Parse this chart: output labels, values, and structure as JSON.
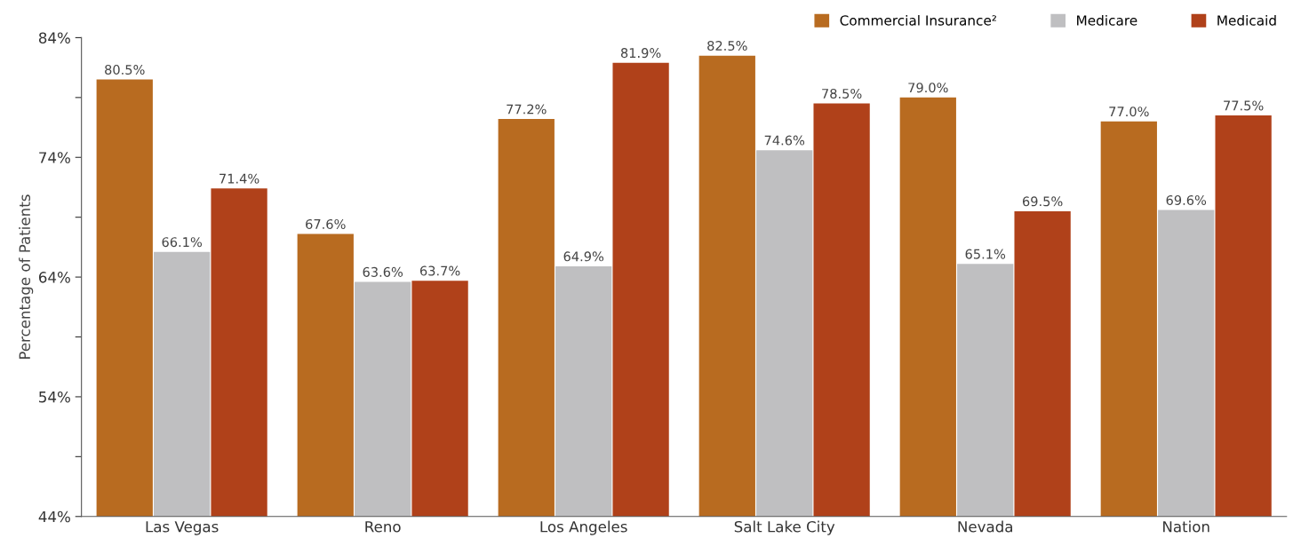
{
  "chart_data": {
    "type": "bar",
    "ylabel": "Percentage of Patients",
    "categories": [
      "Las Vegas",
      "Reno",
      "Los Angeles",
      "Salt Lake City",
      "Nevada",
      "Nation"
    ],
    "series": [
      {
        "name": "Commercial Insurance²",
        "color": "#b86b20",
        "values": [
          80.5,
          67.6,
          77.2,
          82.5,
          79.0,
          77.0
        ],
        "value_labels": [
          "80.5%",
          "67.6%",
          "77.2%",
          "82.5%",
          "79.0%",
          "77.0%"
        ]
      },
      {
        "name": "Medicare",
        "color": "#bfbfc1",
        "values": [
          66.1,
          63.6,
          64.9,
          74.6,
          65.1,
          69.6
        ],
        "value_labels": [
          "66.1%",
          "63.6%",
          "64.9%",
          "74.6%",
          "65.1%",
          "69.6%"
        ]
      },
      {
        "name": "Medicaid",
        "color": "#b0411a",
        "values": [
          71.4,
          63.7,
          81.9,
          78.5,
          69.5,
          77.5
        ],
        "value_labels": [
          "71.4%",
          "63.7%",
          "81.9%",
          "78.5%",
          "69.5%",
          "77.5%"
        ]
      }
    ],
    "ylim": [
      44,
      84
    ],
    "yticks": [
      {
        "value": 44,
        "label": "44%"
      },
      {
        "value": 49,
        "label": null
      },
      {
        "value": 54,
        "label": "54%"
      },
      {
        "value": 59,
        "label": null
      },
      {
        "value": 64,
        "label": "64%"
      },
      {
        "value": 69,
        "label": null
      },
      {
        "value": 74,
        "label": "74%"
      },
      {
        "value": 79,
        "label": null
      },
      {
        "value": 84,
        "label": "84%"
      }
    ],
    "grid": false,
    "legend": "top right"
  }
}
